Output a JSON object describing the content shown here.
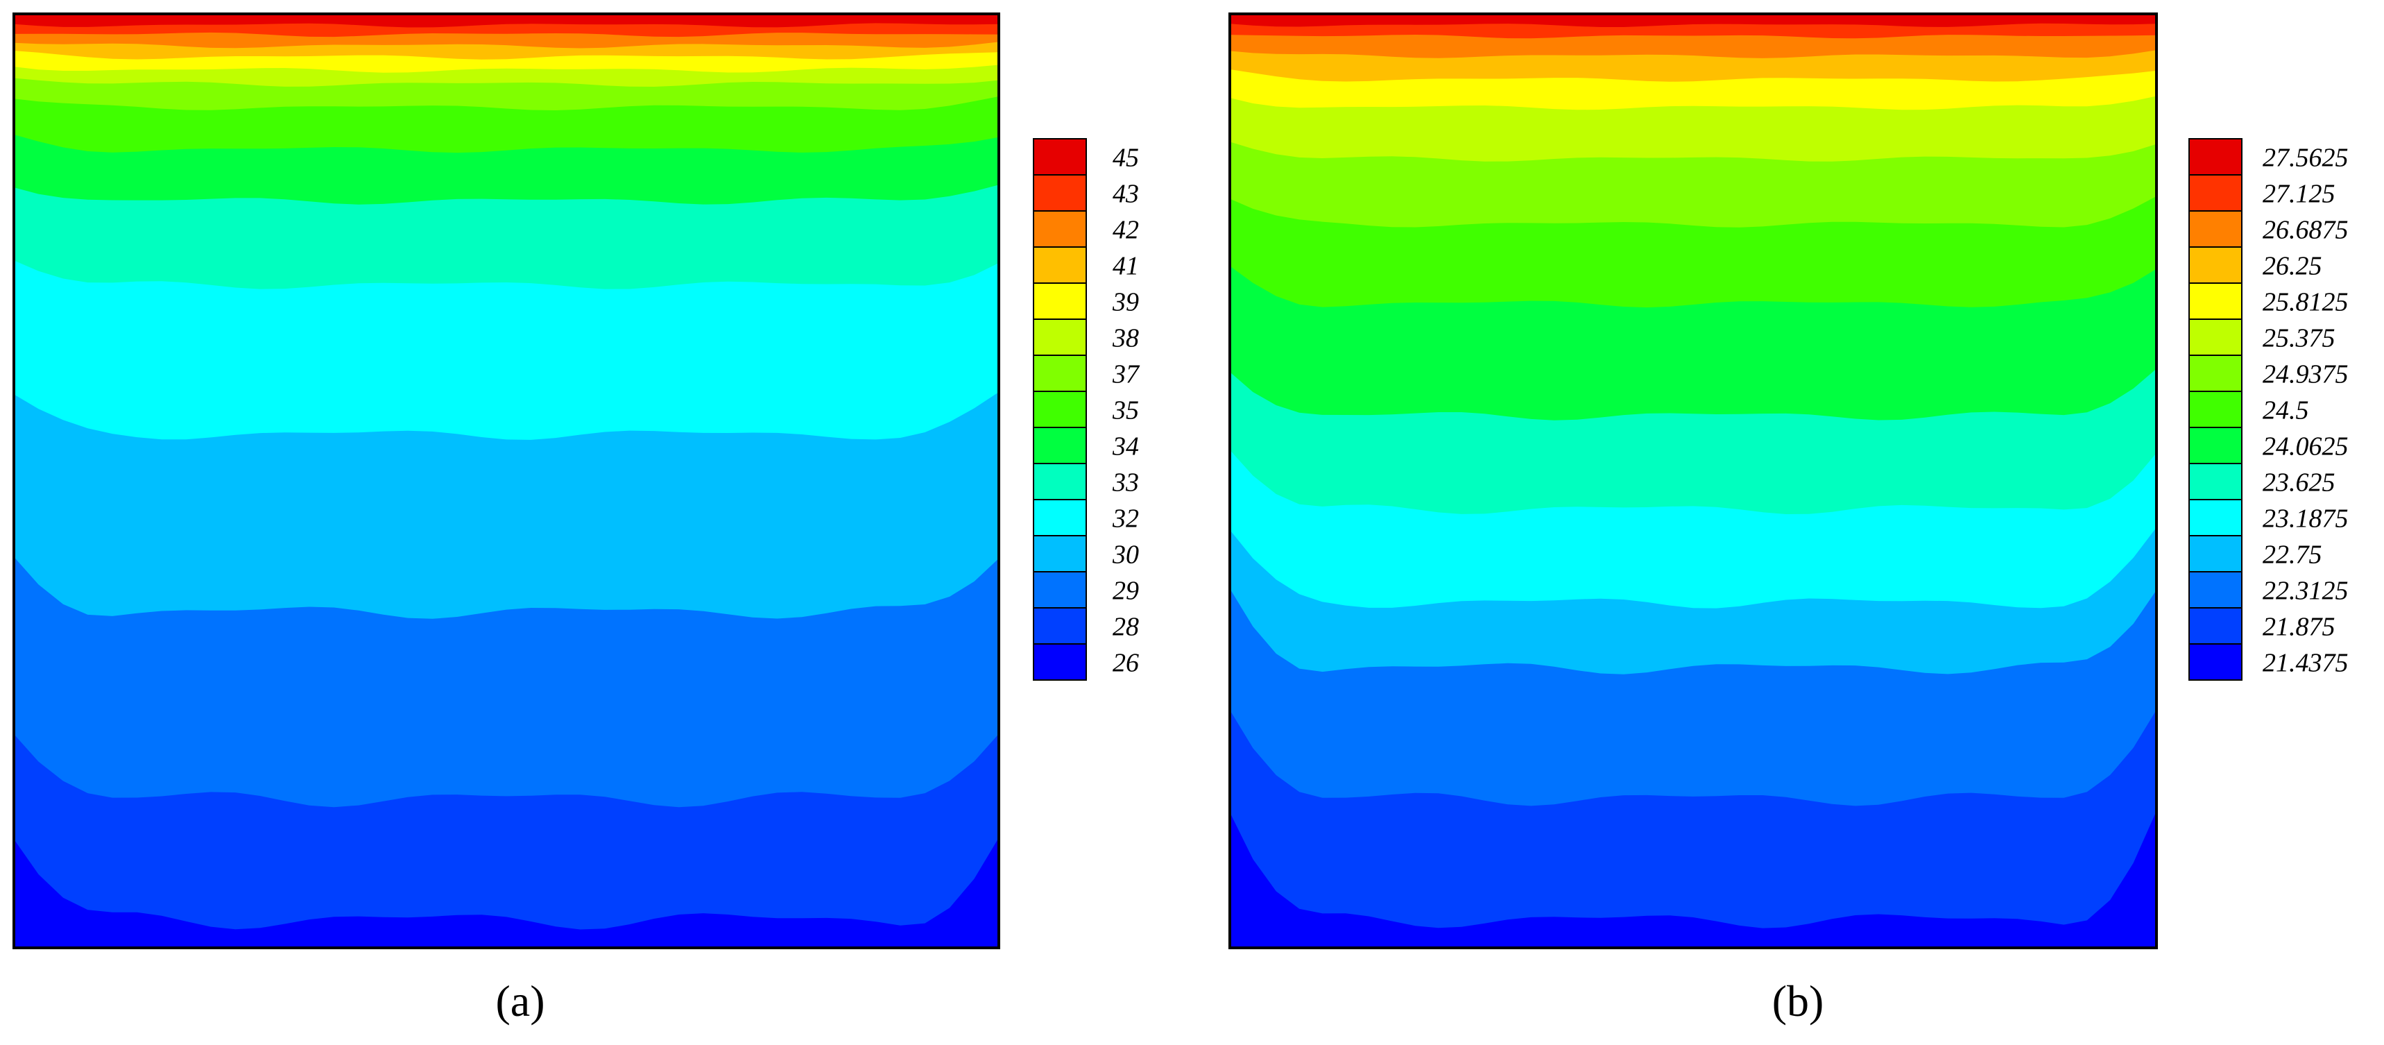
{
  "chart_data": [
    {
      "type": "heatmap",
      "panel_label": "a",
      "legend_levels": [
        "45",
        "43",
        "42",
        "41",
        "39",
        "38",
        "37",
        "35",
        "34",
        "33",
        "32",
        "30",
        "29",
        "28",
        "26"
      ],
      "level_colors": [
        "#e60000",
        "#ff3300",
        "#ff8000",
        "#ffbf00",
        "#ffff00",
        "#bfff00",
        "#80ff00",
        "#40ff00",
        "#00ff40",
        "#00ffbf",
        "#00ffff",
        "#00bfff",
        "#0073ff",
        "#0040ff",
        "#0000ff"
      ],
      "contour_bands_top_to_bottom": [
        "45",
        "43",
        "42",
        "41",
        "39",
        "38",
        "37",
        "35",
        "34",
        "33",
        "32",
        "30",
        "29",
        "28",
        "26"
      ]
    },
    {
      "type": "heatmap",
      "panel_label": "b",
      "legend_levels": [
        "27.5625",
        "27.125",
        "26.6875",
        "26.25",
        "25.8125",
        "25.375",
        "24.9375",
        "24.5",
        "24.0625",
        "23.625",
        "23.1875",
        "22.75",
        "22.3125",
        "21.875",
        "21.4375"
      ],
      "level_colors": [
        "#e60000",
        "#ff3300",
        "#ff8000",
        "#ffbf00",
        "#ffff00",
        "#bfff00",
        "#80ff00",
        "#40ff00",
        "#00ff40",
        "#00ffbf",
        "#00ffff",
        "#00bfff",
        "#0073ff",
        "#0040ff",
        "#0000ff"
      ],
      "contour_bands_top_to_bottom": [
        "27.5625",
        "27.125",
        "26.6875",
        "26.25",
        "25.8125",
        "25.375",
        "24.9375",
        "24.5",
        "24.0625",
        "23.625",
        "23.1875",
        "22.75",
        "22.3125",
        "21.875",
        "21.4375"
      ]
    }
  ],
  "captions": {
    "a": "(a)",
    "b": "(b)"
  }
}
